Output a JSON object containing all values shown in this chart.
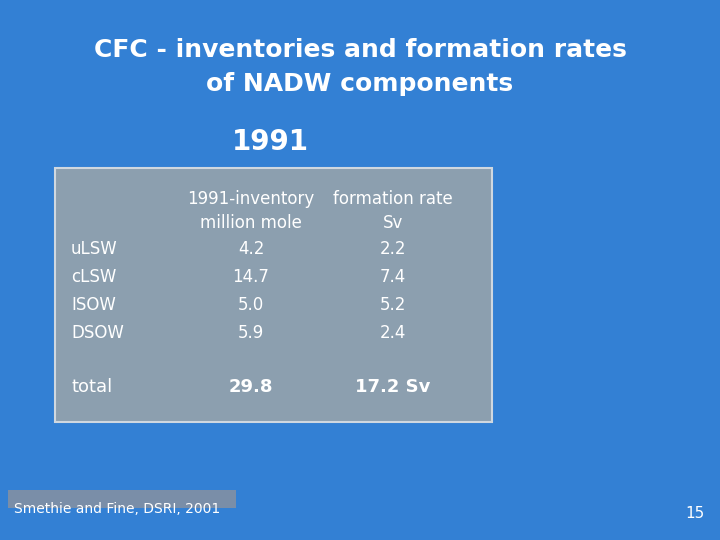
{
  "title_line1": "CFC - inventories and formation rates",
  "title_line2": "of NADW components",
  "year_label": "1991",
  "col_header1": "1991-inventory",
  "col_header2": "formation rate",
  "col_subheader1": "million mole",
  "col_subheader2": "Sv",
  "rows": [
    {
      "label": "uLSW",
      "inventory": "4.2",
      "rate": "2.2"
    },
    {
      "label": "cLSW",
      "inventory": "14.7",
      "rate": "7.4"
    },
    {
      "label": "ISOW",
      "inventory": "5.0",
      "rate": "5.2"
    },
    {
      "label": "DSOW",
      "inventory": "5.9",
      "rate": "2.4"
    }
  ],
  "total_label": "total",
  "total_inventory": "29.8",
  "total_rate": "17.2 Sv",
  "footnote": "Smethie and Fine, DSRI, 2001",
  "slide_number": "15",
  "bg_color": "#3380d4",
  "table_bg_color": "#8c9faf",
  "table_border_color": "#d0d8e0",
  "title_color": "#ffffff",
  "text_color": "#ffffff",
  "footnote_bg": "#7a8ea8"
}
